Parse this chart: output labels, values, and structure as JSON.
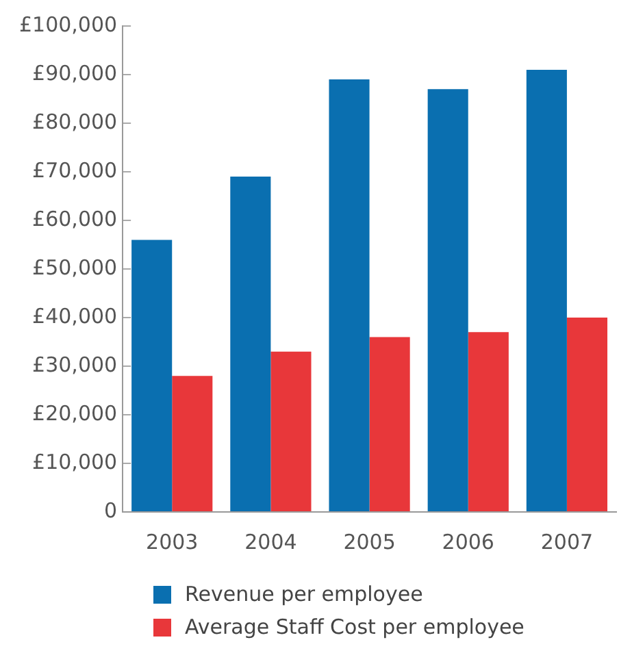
{
  "chart_data": {
    "type": "bar",
    "categories": [
      "2003",
      "2004",
      "2005",
      "2006",
      "2007"
    ],
    "series": [
      {
        "name": "Revenue per employee",
        "color": "#0a6fb0",
        "values": [
          56000,
          69000,
          89000,
          87000,
          91000
        ]
      },
      {
        "name": "Average Staff Cost per employee",
        "color": "#e8373a",
        "values": [
          28000,
          33000,
          36000,
          37000,
          40000
        ]
      }
    ],
    "ylim": [
      0,
      100000
    ],
    "yticks": [
      {
        "value": 0,
        "label": "0"
      },
      {
        "value": 10000,
        "label": "£10,000"
      },
      {
        "value": 20000,
        "label": "£20,000"
      },
      {
        "value": 30000,
        "label": "£30,000"
      },
      {
        "value": 40000,
        "label": "£40,000"
      },
      {
        "value": 50000,
        "label": "£50,000"
      },
      {
        "value": 60000,
        "label": "£60,000"
      },
      {
        "value": 70000,
        "label": "£70,000"
      },
      {
        "value": 80000,
        "label": "£80,000"
      },
      {
        "value": 90000,
        "label": "£90,000"
      },
      {
        "value": 100000,
        "label": "£100,000"
      }
    ],
    "grid": false,
    "legend": "bottom"
  }
}
